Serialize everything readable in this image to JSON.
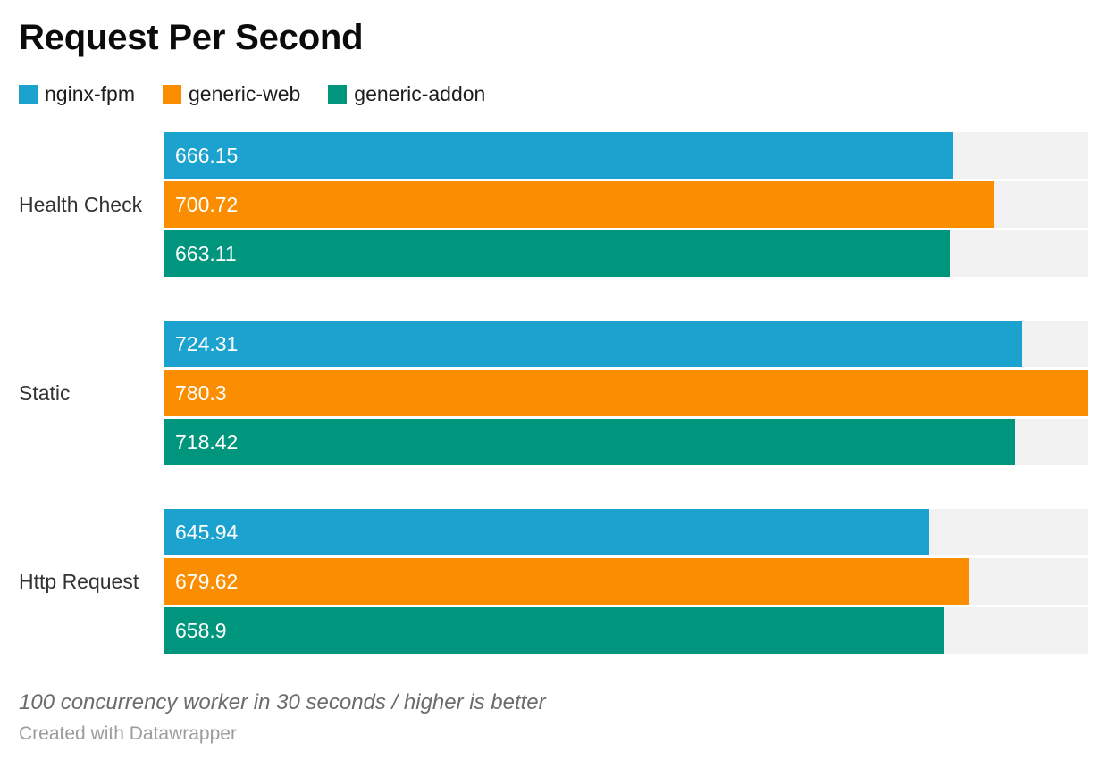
{
  "header": {
    "title": "Request Per Second"
  },
  "legend": [
    {
      "label": "nginx-fpm",
      "color": "#1CA2CE"
    },
    {
      "label": "generic-web",
      "color": "#FA8D00"
    },
    {
      "label": "generic-addon",
      "color": "#00957D"
    }
  ],
  "chart_data": {
    "type": "bar",
    "orientation": "horizontal",
    "title": "Request Per Second",
    "categories": [
      "Health Check",
      "Static",
      "Http Request"
    ],
    "series": [
      {
        "name": "nginx-fpm",
        "color": "#1CA2CE",
        "values": [
          666.15,
          724.31,
          645.94
        ],
        "labels": [
          "666.15",
          "724.31",
          "645.94"
        ]
      },
      {
        "name": "generic-web",
        "color": "#FA8D00",
        "values": [
          700.72,
          780.3,
          679.62
        ],
        "labels": [
          "700.72",
          "780.3",
          "679.62"
        ]
      },
      {
        "name": "generic-addon",
        "color": "#00957D",
        "values": [
          663.11,
          718.42,
          658.9
        ],
        "labels": [
          "663.11",
          "718.42",
          "658.9"
        ]
      }
    ],
    "xlim": [
      0,
      780.3
    ],
    "value_labels_inside_bars": true,
    "track_color": "#f2f2f2",
    "grid": false,
    "axis_ticks": false,
    "legend_position": "top"
  },
  "footer": {
    "note": "100 concurrency worker in 30 seconds / higher is better",
    "attribution": "Created with Datawrapper"
  }
}
